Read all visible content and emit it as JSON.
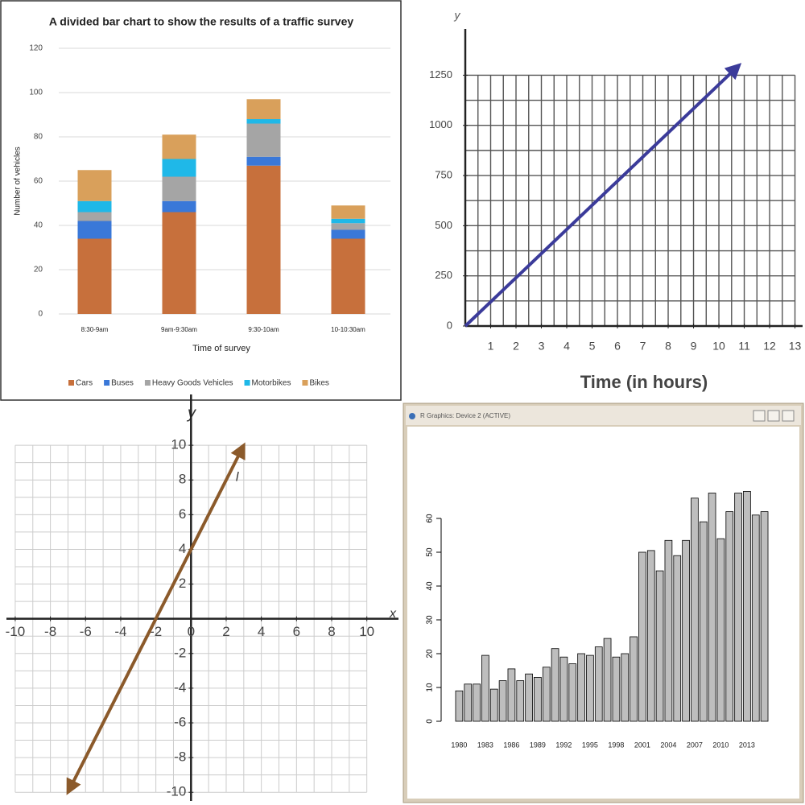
{
  "chart_data": [
    {
      "type": "bar",
      "stacked": true,
      "title": "A divided bar chart to show the results of a traffic survey",
      "xlabel": "Time of survey",
      "ylabel": "Number of vehicles",
      "categories": [
        "8:30-9am",
        "9am-9:30am",
        "9:30-10am",
        "10-10:30am"
      ],
      "series": [
        {
          "name": "Cars",
          "color": "#c7703c",
          "values": [
            34,
            46,
            67,
            34
          ]
        },
        {
          "name": "Buses",
          "color": "#3a78d8",
          "values": [
            8,
            5,
            4,
            4
          ]
        },
        {
          "name": "Heavy Goods Vehicles",
          "color": "#a5a5a5",
          "values": [
            4,
            11,
            15,
            3
          ]
        },
        {
          "name": "Motorbikes",
          "color": "#1fb8e8",
          "values": [
            5,
            8,
            2,
            2
          ]
        },
        {
          "name": "Bikes",
          "color": "#d9a05b",
          "values": [
            14,
            11,
            9,
            6
          ]
        }
      ],
      "ylim": [
        0,
        120
      ],
      "yticks": [
        0,
        20,
        40,
        60,
        80,
        100,
        120
      ],
      "grid": true,
      "legend": "bottom"
    },
    {
      "type": "line",
      "xlabel": "Time (in hours)",
      "ylabel": "y",
      "x": [
        0,
        10.8
      ],
      "values": [
        0,
        1300
      ],
      "color": "#3b3b9a",
      "xlim": [
        0,
        13.3
      ],
      "ylim": [
        0,
        1400
      ],
      "xticks": [
        1,
        2,
        3,
        4,
        5,
        6,
        7,
        8,
        9,
        10,
        11,
        12,
        13
      ],
      "yticks": [
        0,
        250,
        500,
        750,
        1000,
        1250
      ],
      "grid": true
    },
    {
      "type": "line",
      "xlabel": "x",
      "ylabel": "y",
      "annotation": "l",
      "x": [
        -7,
        3
      ],
      "values": [
        -10,
        10
      ],
      "color": "#8b5a2b",
      "xlim": [
        -10.5,
        11.8
      ],
      "ylim": [
        -10.5,
        12
      ],
      "xticks": [
        -10,
        -8,
        -6,
        -4,
        -2,
        0,
        2,
        4,
        6,
        8,
        10
      ],
      "yticks": [
        -10,
        -8,
        -6,
        -4,
        -2,
        2,
        4,
        6,
        8,
        10
      ],
      "grid": true
    },
    {
      "type": "bar",
      "window_title": "R Graphics: Device 2 (ACTIVE)",
      "color": "#bebebe",
      "categories": [
        "1980",
        null,
        null,
        "1983",
        null,
        null,
        "1986",
        null,
        null,
        "1989",
        null,
        null,
        "1992",
        null,
        null,
        "1995",
        null,
        null,
        "1998",
        null,
        null,
        "2001",
        null,
        null,
        "2004",
        null,
        null,
        "2007",
        null,
        null,
        "2010",
        null,
        null,
        "2013",
        null,
        null
      ],
      "values": [
        9,
        11,
        11,
        19.5,
        9.5,
        12,
        15.5,
        12,
        14,
        13,
        16,
        21.5,
        19,
        17,
        20,
        19.5,
        22,
        24.5,
        19,
        20,
        25,
        50,
        50.5,
        44.5,
        53.5,
        49,
        53.5,
        66,
        59,
        67.5,
        54,
        62,
        67.5,
        68,
        61,
        62
      ],
      "ylim": [
        0,
        70
      ],
      "yticks": [
        0,
        10,
        20,
        30,
        40,
        50,
        60
      ],
      "grid": false
    }
  ]
}
